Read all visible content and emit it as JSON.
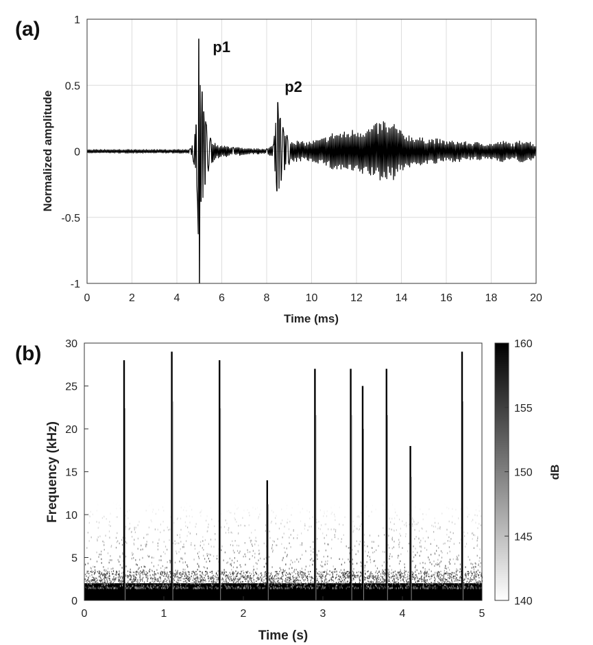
{
  "chart_data": [
    {
      "panel": "(a)",
      "type": "line",
      "xlabel": "Time (ms)",
      "ylabel": "Normalized amplitude",
      "xlim": [
        0,
        20
      ],
      "ylim": [
        -1,
        1
      ],
      "xticks": [
        "0",
        "2",
        "4",
        "6",
        "8",
        "10",
        "12",
        "14",
        "16",
        "18",
        "20"
      ],
      "yticks": [
        "1",
        "0.5",
        "0",
        "-0.5",
        "-1"
      ],
      "grid": true,
      "annotations": [
        {
          "text": "p1",
          "x": 5.6,
          "y": 0.75
        },
        {
          "text": "p2",
          "x": 8.8,
          "y": 0.45
        }
      ],
      "series": [
        {
          "color": "#000000",
          "x": [
            0,
            1,
            2,
            3,
            4,
            4.4,
            4.6,
            4.75,
            4.85,
            4.92,
            4.97,
            5.0,
            5.04,
            5.08,
            5.12,
            5.16,
            5.2,
            5.26,
            5.32,
            5.4,
            5.5,
            5.6,
            5.7,
            5.85,
            6.0,
            6.2,
            6.5,
            6.8,
            7.2,
            7.6,
            8.0,
            8.3,
            8.45,
            8.5,
            8.55,
            8.6,
            8.65,
            8.72,
            8.8,
            8.9,
            9.0,
            9.2,
            9.4,
            9.7,
            10.0,
            10.5,
            11.0,
            11.5,
            12.0,
            12.5,
            13.0,
            13.2,
            13.4,
            13.7,
            14.0,
            14.5,
            15.0,
            15.5,
            16.0,
            16.5,
            17.0,
            17.5,
            18.0,
            18.5,
            19.0,
            19.5,
            20.0
          ],
          "y": [
            0.0,
            0.0,
            0.0,
            0.0,
            0.0,
            0.01,
            0.02,
            -0.08,
            0.2,
            -0.38,
            0.85,
            -1.0,
            0.5,
            -0.38,
            0.45,
            -0.35,
            0.3,
            -0.25,
            0.2,
            -0.15,
            0.1,
            -0.08,
            0.06,
            -0.05,
            0.04,
            -0.04,
            0.03,
            -0.03,
            0.02,
            -0.02,
            0.02,
            0.05,
            -0.3,
            0.37,
            -0.28,
            0.25,
            -0.22,
            0.18,
            -0.14,
            0.12,
            -0.1,
            0.09,
            -0.08,
            0.07,
            -0.08,
            0.1,
            -0.15,
            0.15,
            -0.18,
            0.18,
            -0.22,
            0.25,
            -0.2,
            0.22,
            -0.15,
            0.12,
            -0.1,
            0.1,
            -0.08,
            0.08,
            -0.07,
            0.07,
            -0.06,
            0.08,
            -0.06,
            0.1,
            0.05
          ]
        }
      ]
    },
    {
      "panel": "(b)",
      "type": "heatmap",
      "xlabel": "Time (s)",
      "ylabel": "Frequency (kHz)",
      "xlim": [
        0,
        5
      ],
      "ylim": [
        0,
        30
      ],
      "xticks": [
        "0",
        "1",
        "2",
        "3",
        "4",
        "5"
      ],
      "yticks": [
        "30",
        "25",
        "20",
        "15",
        "10",
        "5",
        "0"
      ],
      "colorbar": {
        "label": "dB",
        "range": [
          140,
          160
        ],
        "ticks": [
          "160",
          "155",
          "150",
          "145",
          "140"
        ],
        "colormap": "white-to-black"
      },
      "dense_band_khz": [
        0,
        3.5
      ],
      "pulses": [
        {
          "t": 0.5,
          "fmax": 28
        },
        {
          "t": 1.1,
          "fmax": 29
        },
        {
          "t": 1.7,
          "fmax": 28
        },
        {
          "t": 2.3,
          "fmax": 14
        },
        {
          "t": 2.9,
          "fmax": 27
        },
        {
          "t": 3.35,
          "fmax": 27
        },
        {
          "t": 3.5,
          "fmax": 25
        },
        {
          "t": 3.8,
          "fmax": 27
        },
        {
          "t": 4.1,
          "fmax": 18
        },
        {
          "t": 4.75,
          "fmax": 29
        }
      ]
    }
  ]
}
